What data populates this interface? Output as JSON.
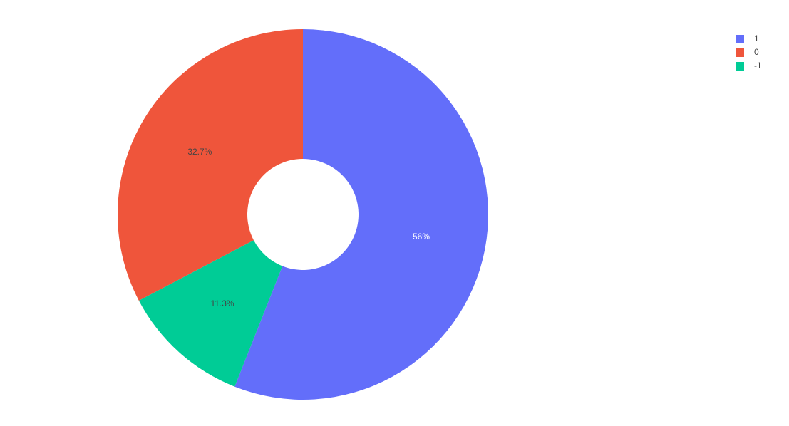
{
  "chart_data": {
    "type": "pie",
    "categories": [
      "1",
      "0",
      "-1"
    ],
    "values": [
      56,
      32.7,
      11.3
    ],
    "value_labels": [
      "56%",
      "32.7%",
      "11.3%"
    ],
    "colors": [
      "#636efa",
      "#ef553b",
      "#00cc96"
    ],
    "hole": 0.3,
    "legend": "top-right"
  }
}
